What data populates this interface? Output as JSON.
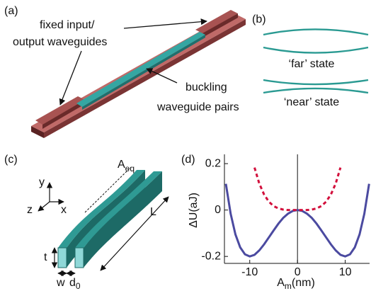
{
  "panels": {
    "a": {
      "label": "(a)",
      "callout_top": "fixed input/",
      "callout_bottom": "output waveguides",
      "buckling_top": "buckling",
      "buckling_bottom": "waveguide pairs"
    },
    "b": {
      "label": "(b)",
      "far": "‘far’ state",
      "near": "‘near’ state"
    },
    "c": {
      "label": "(c)",
      "axis_y": "y",
      "axis_z": "z",
      "axis_x": "x",
      "amplitude": {
        "base": "A",
        "subscript": "eq"
      },
      "length": "L",
      "thickness": "t",
      "width": "w",
      "gap": {
        "base": "d",
        "subscript": "0"
      }
    },
    "d": {
      "label": "(d)"
    }
  },
  "chart_data": {
    "type": "line",
    "ylabel": "ΔU(aJ)",
    "xlabel": {
      "base": "A",
      "subscript": "m",
      "suffix": "(nm)"
    },
    "x": [
      -15,
      -14,
      -13,
      -12,
      -11,
      -10,
      -9,
      -8,
      -7,
      -6,
      -5,
      -4,
      -3,
      -2,
      -1,
      0,
      1,
      2,
      3,
      4,
      5,
      6,
      7,
      8,
      9,
      10,
      11,
      12,
      13,
      14,
      15
    ],
    "series": [
      {
        "color": "#4b4aa0",
        "dashed": false,
        "values": [
          0.113,
          -0.016,
          -0.105,
          -0.161,
          -0.191,
          -0.2,
          -0.193,
          -0.174,
          -0.148,
          -0.118,
          -0.088,
          -0.059,
          -0.034,
          -0.016,
          -0.004,
          0,
          -0.004,
          -0.016,
          -0.034,
          -0.059,
          -0.088,
          -0.118,
          -0.148,
          -0.174,
          -0.193,
          -0.2,
          -0.191,
          -0.161,
          -0.105,
          -0.016,
          0.113
        ]
      },
      {
        "color": "#d2103c",
        "dashed": true,
        "values": [
          null,
          null,
          null,
          null,
          null,
          null,
          0.183,
          0.114,
          0.067,
          0.036,
          0.017,
          0.007,
          0.002,
          0,
          0,
          0,
          0,
          0,
          0.002,
          0.007,
          0.017,
          0.036,
          0.067,
          0.114,
          0.183,
          null,
          null,
          null,
          null,
          null,
          null
        ]
      }
    ],
    "xlim": [
      -15.3,
      15.1
    ],
    "ylim": [
      -0.23,
      0.24
    ],
    "xticks": [
      -10,
      0,
      10
    ],
    "yticks": [
      -0.2,
      0,
      0.2
    ],
    "zero_line": true
  }
}
